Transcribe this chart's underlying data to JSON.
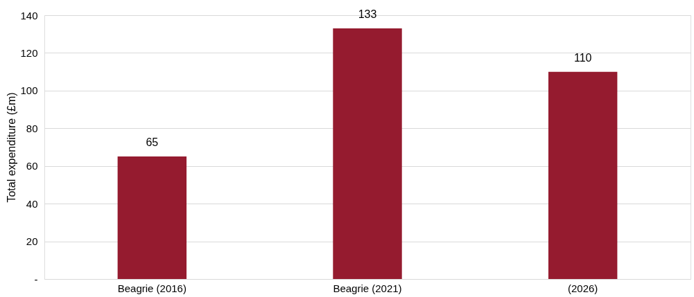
{
  "chart_data": {
    "type": "bar",
    "ylabel": "Total expenditure (£m)",
    "categories": [
      "Beagrie (2016)",
      "Beagrie (2021)",
      "(2026)"
    ],
    "values": [
      65,
      133,
      110
    ],
    "color": "#951b2f",
    "ylim": [
      0,
      140
    ],
    "yticks": [
      {
        "value": 0,
        "label": "-"
      },
      20,
      40,
      60,
      80,
      100,
      120,
      140
    ],
    "grid": "y",
    "data_labels": true
  }
}
